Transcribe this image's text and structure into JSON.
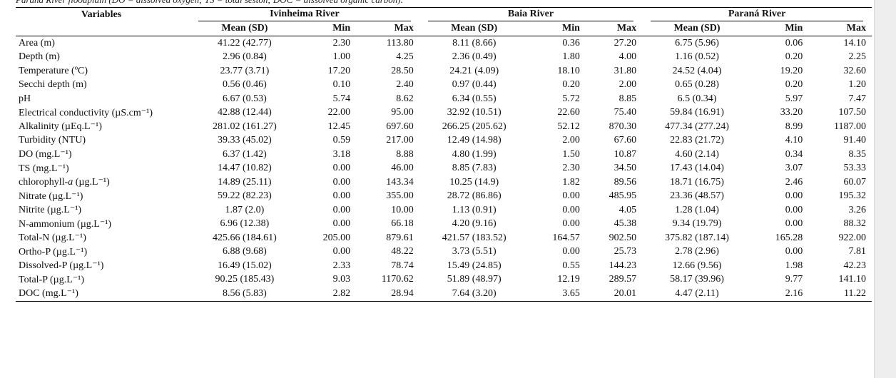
{
  "caption": "Paraná River floodplain (DO = dissolved oxygen; TS = total seston; DOC = dissolved organic carbon).",
  "header": {
    "variables": "Variables",
    "rivers": [
      "Ivinheima River",
      "Baia River",
      "Paraná River"
    ],
    "stats": [
      "Mean (SD)",
      "Min",
      "Max"
    ]
  },
  "rows": [
    {
      "label": "Area (m)",
      "values": [
        "41.22 (42.77)",
        "2.30",
        "113.80",
        "8.11 (8.66)",
        "0.36",
        "27.20",
        "6.75 (5.96)",
        "0.06",
        "14.10"
      ]
    },
    {
      "label": "Depth (m)",
      "values": [
        "2.96 (0.84)",
        "1.00",
        "4.25",
        "2.36 (0.49)",
        "1.80",
        "4.00",
        "1.16 (0.52)",
        "0.20",
        "2.25"
      ]
    },
    {
      "label": "Temperature (ºC)",
      "values": [
        "23.77 (3.71)",
        "17.20",
        "28.50",
        "24.21 (4.09)",
        "18.10",
        "31.80",
        "24.52 (4.04)",
        "19.20",
        "32.60"
      ]
    },
    {
      "label": "Secchi depth (m)",
      "values": [
        "0.56 (0.46)",
        "0.10",
        "2.40",
        "0.97 (0.44)",
        "0.20",
        "2.00",
        "0.65 (0.28)",
        "0.20",
        "1.20"
      ]
    },
    {
      "label": "pH",
      "values": [
        "6.67 (0.53)",
        "5.74",
        "8.62",
        "6.34 (0.55)",
        "5.72",
        "8.85",
        "6.5 (0.34)",
        "5.97",
        "7.47"
      ]
    },
    {
      "label": "Electrical conductivity (µS.cm⁻¹)",
      "values": [
        "42.88 (12.44)",
        "22.00",
        "95.00",
        "32.92 (10.51)",
        "22.60",
        "75.40",
        "59.84 (16.91)",
        "33.20",
        "107.50"
      ]
    },
    {
      "label": "Alkalinity (µEq.L⁻¹)",
      "values": [
        "281.02 (161.27)",
        "12.45",
        "697.60",
        "266.25 (205.62)",
        "52.12",
        "870.30",
        "477.34 (277.24)",
        "8.99",
        "1187.00"
      ]
    },
    {
      "label": "Turbidity (NTU)",
      "values": [
        "39.33 (45.02)",
        "0.59",
        "217.00",
        "12.49 (14.98)",
        "2.00",
        "67.60",
        "22.83 (21.72)",
        "4.10",
        "91.40"
      ]
    },
    {
      "label": "DO (mg.L⁻¹)",
      "values": [
        "6.37 (1.42)",
        "3.18",
        "8.88",
        "4.80 (1.99)",
        "1.50",
        "10.87",
        "4.60 (2.14)",
        "0.34",
        "8.35"
      ]
    },
    {
      "label": "TS (mg.L⁻¹)",
      "values": [
        "14.47 (10.82)",
        "0.00",
        "46.00",
        "8.85 (7.83)",
        "2.30",
        "34.50",
        "17.43 (14.04)",
        "3.07",
        "53.33"
      ]
    },
    {
      "label": "chlorophyll-a (µg.L⁻¹)",
      "values": [
        "14.89 (25.11)",
        "0.00",
        "143.34",
        "10.25 (14.9)",
        "1.82",
        "89.56",
        "18.71 (16.75)",
        "2.46",
        "60.07"
      ]
    },
    {
      "label": "Nitrate (µg.L⁻¹)",
      "values": [
        "59.22 (82.23)",
        "0.00",
        "355.00",
        "28.72 (86.86)",
        "0.00",
        "485.95",
        "23.36 (48.57)",
        "0.00",
        "195.32"
      ]
    },
    {
      "label": "Nitrite (µg.L⁻¹)",
      "values": [
        "1.87 (2.0)",
        "0.00",
        "10.00",
        "1.13 (0.91)",
        "0.00",
        "4.05",
        "1.28 (1.04)",
        "0.00",
        "3.26"
      ]
    },
    {
      "label": "N-ammonium (µg.L⁻¹)",
      "values": [
        "6.96 (12.38)",
        "0.00",
        "66.18",
        "4.20 (9.16)",
        "0.00",
        "45.38",
        "9.34 (19.79)",
        "0.00",
        "88.32"
      ]
    },
    {
      "label": "Total-N (µg.L⁻¹)",
      "values": [
        "425.66 (184.61)",
        "205.00",
        "879.61",
        "421.57 (183.52)",
        "164.57",
        "902.50",
        "375.82 (187.14)",
        "165.28",
        "922.00"
      ]
    },
    {
      "label": "Ortho-P (µg.L⁻¹)",
      "values": [
        "6.88 (9.68)",
        "0.00",
        "48.22",
        "3.73 (5.51)",
        "0.00",
        "25.73",
        "2.78 (2.96)",
        "0.00",
        "7.81"
      ]
    },
    {
      "label": "Dissolved-P (µg.L⁻¹)",
      "values": [
        "16.49 (15.02)",
        "2.33",
        "78.74",
        "15.49 (24.85)",
        "0.55",
        "144.23",
        "12.66 (9.56)",
        "1.98",
        "42.23"
      ]
    },
    {
      "label": "Total-P (µg.L⁻¹)",
      "values": [
        "90.25 (185.43)",
        "9.03",
        "1170.62",
        "51.89 (48.97)",
        "12.19",
        "289.57",
        "58.17 (39.96)",
        "9.77",
        "141.10"
      ]
    },
    {
      "label": "DOC (mg.L⁻¹)",
      "values": [
        "8.56 (5.83)",
        "2.82",
        "28.94",
        "7.64 (3.20)",
        "3.65",
        "20.01",
        "4.47 (2.11)",
        "2.16",
        "11.22"
      ]
    }
  ]
}
